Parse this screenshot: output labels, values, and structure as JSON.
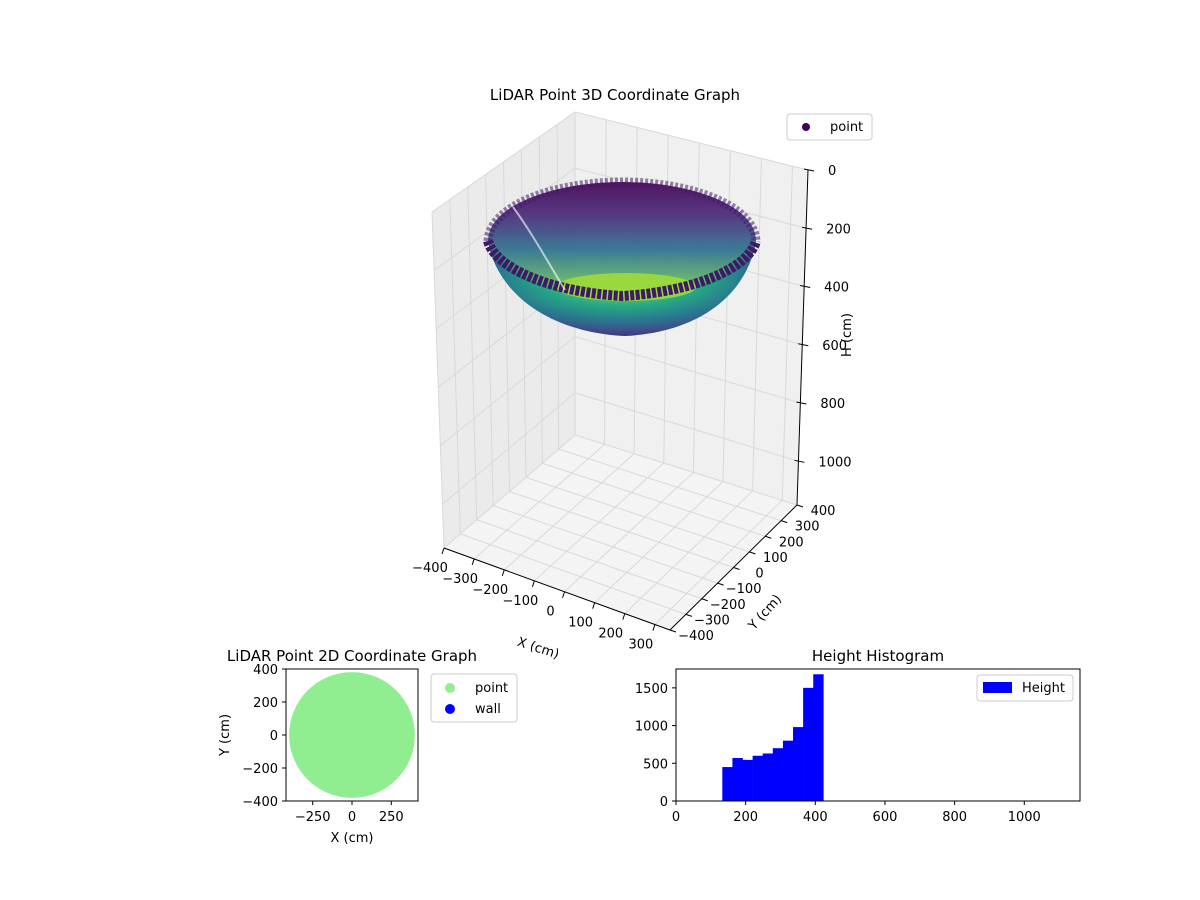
{
  "chart_data": [
    {
      "type": "scatter",
      "title": "LiDAR Point 3D Coordinate Graph",
      "xlabel": "X (cm)",
      "ylabel": "Y (cm)",
      "zlabel": "H (cm)",
      "xlim": [
        -400,
        350
      ],
      "ylim": [
        -400,
        400
      ],
      "zlim": [
        1150,
        0
      ],
      "xticks": [
        -400,
        -300,
        -200,
        -100,
        0,
        100,
        200,
        300
      ],
      "xtick_labels": [
        "−400",
        "−300",
        "−200",
        "−100",
        "0",
        "100",
        "200",
        "300"
      ],
      "yticks": [
        -400,
        -300,
        -200,
        -100,
        0,
        100,
        200,
        300,
        400
      ],
      "ytick_labels": [
        "−400",
        "−300",
        "−200",
        "−100",
        "0",
        "100",
        "200",
        "300",
        "400"
      ],
      "zticks": [
        0,
        200,
        400,
        600,
        800,
        1000
      ],
      "ztick_labels": [
        "0",
        "200",
        "400",
        "600",
        "800",
        "1000"
      ],
      "grid": true,
      "colormap": "viridis",
      "legend": {
        "placement": "top-right",
        "entries": [
          {
            "label": "point",
            "color": "#440154"
          }
        ]
      },
      "shape": "hemispherical bowl of points",
      "rim_radius": 400,
      "height_range": [
        135,
        425
      ]
    },
    {
      "type": "scatter",
      "title": "LiDAR Point 2D Coordinate Graph",
      "xlabel": "X (cm)",
      "ylabel": "Y (cm)",
      "xlim": [
        -420,
        420
      ],
      "ylim": [
        -400,
        400
      ],
      "xticks": [
        -250,
        0,
        250
      ],
      "xtick_labels": [
        "−250",
        "0",
        "250"
      ],
      "yticks": [
        -400,
        -200,
        0,
        200,
        400
      ],
      "ytick_labels": [
        "−400",
        "−200",
        "0",
        "200",
        "400"
      ],
      "series": [
        {
          "name": "point",
          "color": "#90ee90",
          "shape": "filled disk",
          "radius": 400
        },
        {
          "name": "wall",
          "color": "#0000ff",
          "points": []
        }
      ],
      "legend": {
        "placement": "outside-right",
        "entries": [
          {
            "label": "point",
            "color": "#90ee90"
          },
          {
            "label": "wall",
            "color": "#0000ff"
          }
        ]
      }
    },
    {
      "type": "bar",
      "title": "Height Histogram",
      "xlim": [
        0,
        1160
      ],
      "ylim": [
        0,
        1750
      ],
      "xticks": [
        0,
        200,
        400,
        600,
        800,
        1000
      ],
      "xtick_labels": [
        "0",
        "200",
        "400",
        "600",
        "800",
        "1000"
      ],
      "yticks": [
        0,
        500,
        1000,
        1500
      ],
      "ytick_labels": [
        "0",
        "500",
        "1000",
        "1500"
      ],
      "bins": [
        {
          "x0": 133,
          "x1": 162,
          "count": 450
        },
        {
          "x0": 162,
          "x1": 191,
          "count": 570
        },
        {
          "x0": 191,
          "x1": 220,
          "count": 545
        },
        {
          "x0": 220,
          "x1": 249,
          "count": 600
        },
        {
          "x0": 249,
          "x1": 278,
          "count": 630
        },
        {
          "x0": 278,
          "x1": 307,
          "count": 700
        },
        {
          "x0": 307,
          "x1": 336,
          "count": 800
        },
        {
          "x0": 336,
          "x1": 365,
          "count": 980
        },
        {
          "x0": 365,
          "x1": 394,
          "count": 1500
        },
        {
          "x0": 394,
          "x1": 423,
          "count": 1680
        }
      ],
      "color": "#0000ff",
      "legend": {
        "placement": "top-right",
        "entries": [
          {
            "label": "Height",
            "color": "#0000ff"
          }
        ]
      }
    }
  ]
}
